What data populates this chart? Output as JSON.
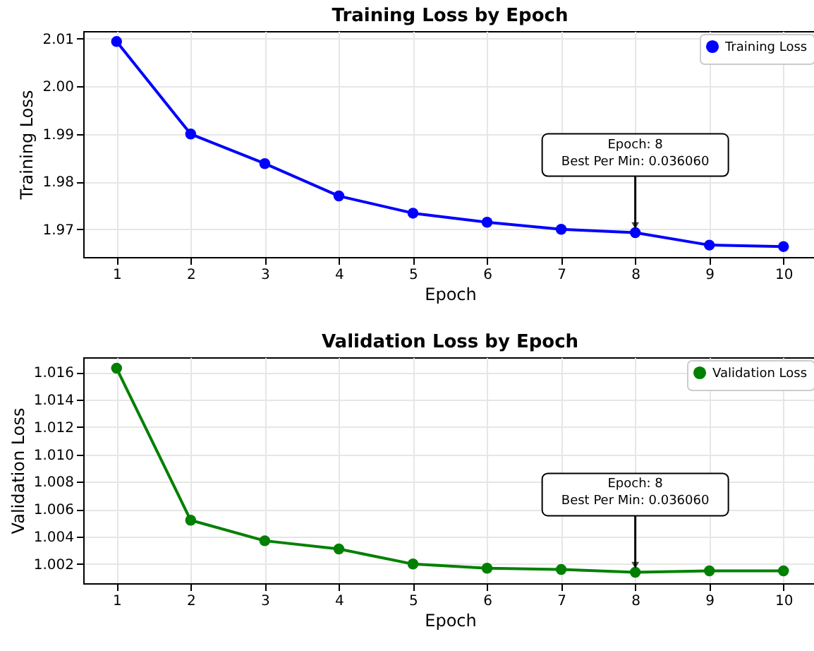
{
  "chart_data": [
    {
      "type": "line",
      "title": "Training Loss by Epoch",
      "xlabel": "Epoch",
      "ylabel": "Training Loss",
      "x": [
        1,
        2,
        3,
        4,
        5,
        6,
        7,
        8,
        9,
        10
      ],
      "series": [
        {
          "name": "Training Loss",
          "color": "#0000ff",
          "values": [
            2.0094,
            1.99,
            1.9838,
            1.977,
            1.9734,
            1.9715,
            1.97,
            1.9693,
            1.9667,
            1.9664
          ]
        }
      ],
      "xlim": [
        0.55,
        10.45
      ],
      "xticks": [
        1,
        2,
        3,
        4,
        5,
        6,
        7,
        8,
        9,
        10
      ],
      "ylim": [
        1.9642,
        2.0116
      ],
      "yticks": [
        1.97,
        1.98,
        1.99,
        {
          "value": 2,
          "label": "2.00"
        },
        2.01
      ],
      "annotations": [
        {
          "text": "Epoch: 8\nBest Per Min: 0.036060",
          "x": 8,
          "y": 1.9693
        }
      ],
      "grid": true,
      "legend": "top right",
      "marker": "circle",
      "line_style": "solid"
    },
    {
      "type": "line",
      "title": "Validation Loss by Epoch",
      "xlabel": "Epoch",
      "ylabel": "Validation Loss",
      "x": [
        1,
        2,
        3,
        4,
        5,
        6,
        7,
        8,
        9,
        10
      ],
      "series": [
        {
          "name": "Validation Loss",
          "color": "#008000",
          "values": [
            1.0163,
            1.0052,
            1.0037,
            1.0031,
            1.002,
            1.0017,
            1.0016,
            1.0014,
            1.0015,
            1.0015
          ]
        }
      ],
      "xlim": [
        0.55,
        10.45
      ],
      "xticks": [
        1,
        2,
        3,
        4,
        5,
        6,
        7,
        8,
        9,
        10
      ],
      "ylim": [
        1.0006,
        1.0171
      ],
      "yticks": [
        1.002,
        1.004,
        1.006,
        1.008,
        {
          "value": 1.01,
          "label": "1.010"
        },
        1.012,
        1.014,
        1.016
      ],
      "annotations": [
        {
          "text": "Epoch: 8\nBest Per Min: 0.036060",
          "x": 8,
          "y": 1.0014
        }
      ],
      "grid": true,
      "legend": "top right",
      "marker": "circle",
      "line_style": "solid"
    }
  ]
}
